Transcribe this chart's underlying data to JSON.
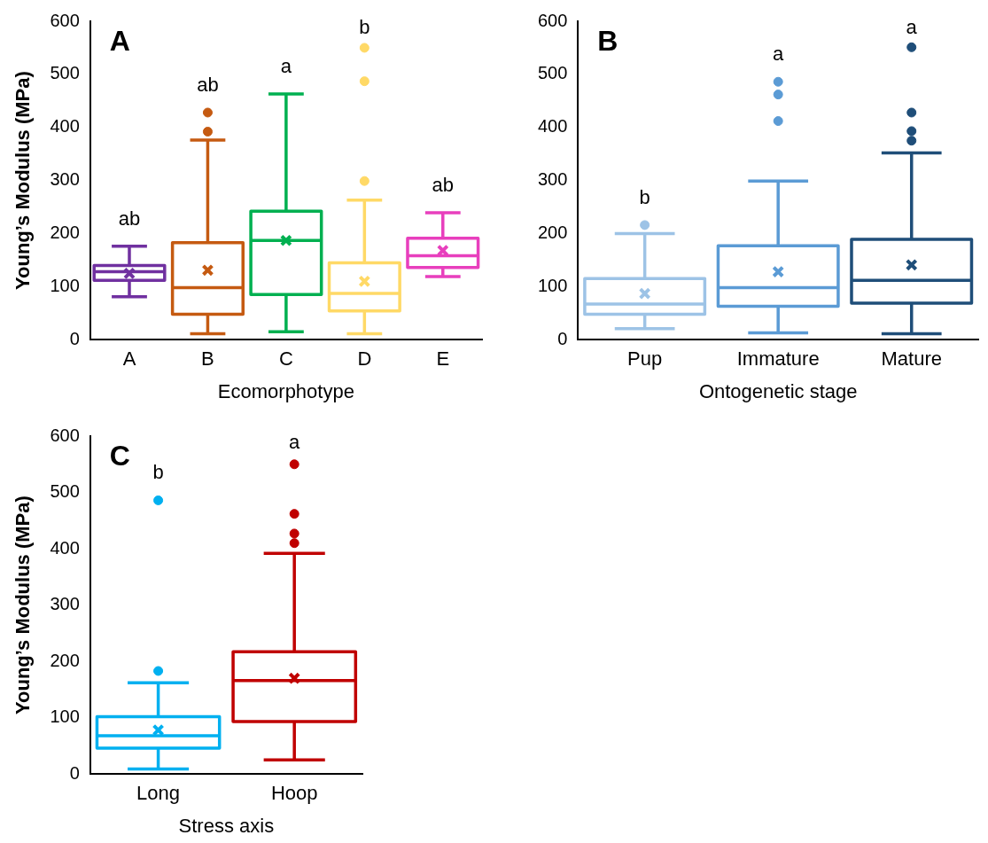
{
  "chart_data": [
    {
      "type": "box",
      "title": "A",
      "xlabel": "Ecomorphotype",
      "ylabel": "Young’s Modulus (MPa)",
      "categories": [
        "A",
        "B",
        "C",
        "D",
        "E"
      ],
      "colors": [
        "#7030a0",
        "#c55a11",
        "#00b050",
        "#ffd966",
        "#e83fbd"
      ],
      "ylim": [
        0,
        600
      ],
      "yticks": [
        0,
        100,
        200,
        300,
        400,
        500,
        600
      ],
      "grid": false,
      "legend": false,
      "marker": "circle",
      "boxes": [
        {
          "low": 81,
          "q1": 112,
          "median": 128,
          "q3": 140,
          "high": 176,
          "mean": 125
        },
        {
          "low": 11,
          "q1": 48,
          "median": 98,
          "q3": 183,
          "high": 376,
          "mean": 131,
          "outliers": [
            392,
            428
          ]
        },
        {
          "low": 15,
          "q1": 85,
          "median": 187,
          "q3": 242,
          "high": 463,
          "mean": 187
        },
        {
          "low": 11,
          "q1": 54,
          "median": 87,
          "q3": 145,
          "high": 263,
          "mean": 110,
          "outliers": [
            299,
            487,
            550
          ]
        },
        {
          "low": 119,
          "q1": 136,
          "median": 158,
          "q3": 191,
          "high": 239,
          "mean": 168
        }
      ],
      "annotations": [
        "ab",
        "ab",
        "a",
        "b",
        "ab"
      ]
    },
    {
      "type": "box",
      "title": "B",
      "xlabel": "Ontogenetic stage",
      "categories": [
        "Pup",
        "Immature",
        "Mature"
      ],
      "colors": [
        "#9dc3e6",
        "#5b9bd5",
        "#1f4e79"
      ],
      "ylim": [
        0,
        600
      ],
      "yticks": [
        0,
        100,
        200,
        300,
        400,
        500,
        600
      ],
      "grid": false,
      "legend": false,
      "marker": "circle",
      "boxes": [
        {
          "low": 21,
          "q1": 48,
          "median": 67,
          "q3": 115,
          "high": 200,
          "mean": 87,
          "outliers": [
            216
          ]
        },
        {
          "low": 13,
          "q1": 63,
          "median": 98,
          "q3": 177,
          "high": 299,
          "mean": 128,
          "outliers": [
            412,
            462,
            486
          ]
        },
        {
          "low": 11,
          "q1": 69,
          "median": 112,
          "q3": 189,
          "high": 352,
          "mean": 141,
          "outliers": [
            375,
            393,
            428,
            551
          ]
        }
      ],
      "annotations": [
        "b",
        "a",
        "a"
      ]
    },
    {
      "type": "box",
      "title": "C",
      "xlabel": "Stress axis",
      "ylabel": "Young’s Modulus (MPa)",
      "categories": [
        "Long",
        "Hoop"
      ],
      "colors": [
        "#00b0f0",
        "#c00000"
      ],
      "ylim": [
        0,
        600
      ],
      "yticks": [
        0,
        100,
        200,
        300,
        400,
        500,
        600
      ],
      "grid": false,
      "legend": false,
      "marker": "circle",
      "boxes": [
        {
          "low": 9,
          "q1": 46,
          "median": 68,
          "q3": 102,
          "high": 162,
          "mean": 78,
          "outliers": [
            183,
            486
          ]
        },
        {
          "low": 25,
          "q1": 93,
          "median": 166,
          "q3": 217,
          "high": 392,
          "mean": 170,
          "outliers": [
            410,
            427,
            462,
            550
          ]
        }
      ],
      "annotations": [
        "b",
        "a"
      ]
    }
  ]
}
